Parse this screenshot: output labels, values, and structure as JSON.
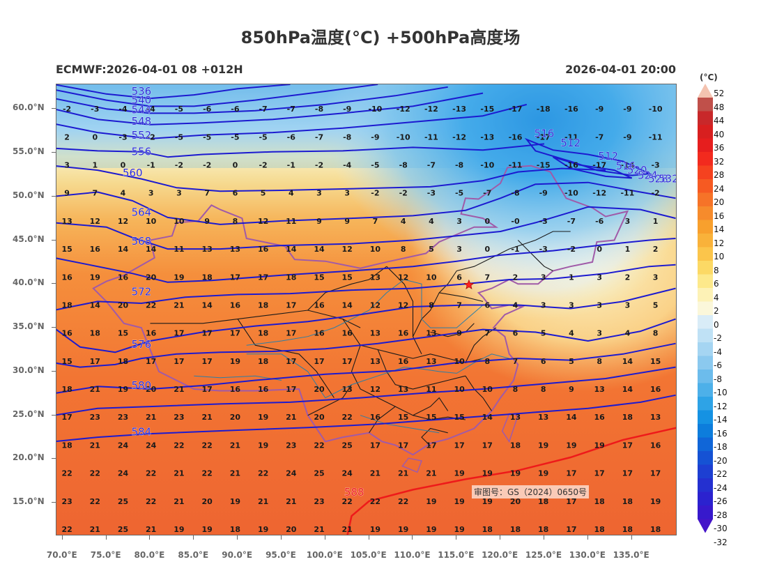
{
  "header": {
    "title": "850hPa温度(°C) +500hPa高度场",
    "model_run": "ECMWF:2026-04-01 08 +012H",
    "valid_time": "2026-04-01 20:00"
  },
  "approval_number": "审图号：GS（2024）0650号",
  "axes": {
    "lat_labels": [
      "60.0°N",
      "55.0°N",
      "50.0°N",
      "45.0°N",
      "40.0°N",
      "35.0°N",
      "30.0°N",
      "25.0°N",
      "20.0°N",
      "15.0°N"
    ],
    "lat_values": [
      60,
      55,
      50,
      45,
      40,
      35,
      30,
      25,
      20,
      15
    ],
    "lon_labels": [
      "70.0°E",
      "75.0°E",
      "80.0°E",
      "85.0°E",
      "90.0°E",
      "95.0°E",
      "100.0°E",
      "105.0°E",
      "110.0°E",
      "115.0°E",
      "120.0°E",
      "125.0°E",
      "130.0°E",
      "135.0°E"
    ],
    "lon_values": [
      70,
      75,
      80,
      85,
      90,
      95,
      100,
      105,
      110,
      115,
      120,
      125,
      130,
      135
    ],
    "lat_range": [
      11.2,
      62.8
    ],
    "lon_range": [
      69.3,
      140.2
    ]
  },
  "colorbar": {
    "unit": "(°C)",
    "labels": [
      "52",
      "48",
      "44",
      "40",
      "36",
      "32",
      "28",
      "24",
      "20",
      "16",
      "14",
      "12",
      "10",
      "8",
      "6",
      "4",
      "2",
      "0",
      "-2",
      "-4",
      "-6",
      "-8",
      "-10",
      "-12",
      "-14",
      "-16",
      "-18",
      "-20",
      "-22",
      "-24",
      "-26",
      "-28",
      "-30",
      "-32"
    ],
    "colors": [
      "#f4c3b0",
      "#c0504a",
      "#c8282a",
      "#d81f1f",
      "#e61e1e",
      "#f22a1e",
      "#f5421f",
      "#f65a22",
      "#f67328",
      "#f68b2c",
      "#f8a02d",
      "#f9b23a",
      "#fbc54b",
      "#fcd965",
      "#fde98b",
      "#fdf2b6",
      "#fbf7da",
      "#d9ecf7",
      "#bfe1f5",
      "#a5d5f2",
      "#8bc9ef",
      "#6cbcec",
      "#4db0e9",
      "#2ea3e6",
      "#1592e3",
      "#0d7ddc",
      "#1066d8",
      "#1552d4",
      "#1d3fd2",
      "#2430d0",
      "#2b22cf",
      "#3719cc",
      "#4414c9"
    ]
  },
  "contours": {
    "height_labels": [
      "536",
      "540",
      "544",
      "548",
      "552",
      "556",
      "560",
      "564",
      "568",
      "572",
      "576",
      "580",
      "584",
      "588",
      "516",
      "512",
      "512",
      "516",
      "520",
      "524",
      "528",
      "532"
    ],
    "height_values": [
      536,
      540,
      544,
      548,
      552,
      556,
      560,
      564,
      568,
      572,
      576,
      580,
      584,
      588,
      516,
      512,
      512,
      516,
      520,
      524,
      528,
      532
    ]
  },
  "temperature_grid": {
    "lons": [
      70.5,
      73.7,
      76.9,
      80.1,
      83.3,
      86.5,
      89.7,
      92.9,
      96.1,
      99.3,
      102.5,
      105.7,
      108.9,
      112.1,
      115.3,
      118.5,
      121.7,
      124.9,
      128.1,
      131.3,
      134.5,
      137.7
    ],
    "lats": [
      60.0,
      56.8,
      53.6,
      50.4,
      47.2,
      44.0,
      40.8,
      37.6,
      34.4,
      31.2,
      28.0,
      24.8,
      21.6,
      18.4,
      15.2,
      12.0
    ],
    "rows": [
      [
        "-2",
        "-3",
        "-4",
        "-4",
        "-5",
        "-6",
        "-6",
        "-7",
        "-7",
        "-8",
        "-9",
        "-10",
        "-12",
        "-12",
        "-13",
        "-15",
        "-17",
        "-18",
        "-16",
        "-9",
        "-9",
        "-10"
      ],
      [
        "2",
        "0",
        "-3",
        "-2",
        "-5",
        "-5",
        "-5",
        "-5",
        "-6",
        "-7",
        "-8",
        "-9",
        "-10",
        "-11",
        "-12",
        "-13",
        "-16",
        "-17",
        "-11",
        "-7",
        "-9",
        "-11"
      ],
      [
        "3",
        "1",
        "0",
        "-1",
        "-2",
        "-2",
        "0",
        "-2",
        "-1",
        "-2",
        "-4",
        "-5",
        "-8",
        "-7",
        "-8",
        "-10",
        "-11",
        "-15",
        "-16",
        "-17",
        "-14",
        "-3"
      ],
      [
        "9",
        "7",
        "4",
        "3",
        "3",
        "7",
        "6",
        "5",
        "4",
        "3",
        "3",
        "-2",
        "-2",
        "-3",
        "-5",
        "-7",
        "-8",
        "-9",
        "-10",
        "-12",
        "-11",
        "-2"
      ],
      [
        "13",
        "12",
        "12",
        "10",
        "10",
        "9",
        "8",
        "12",
        "11",
        "9",
        "9",
        "7",
        "4",
        "4",
        "3",
        "0",
        "-0",
        "-3",
        "-7",
        "-6",
        "3",
        "1"
      ],
      [
        "15",
        "16",
        "14",
        "14",
        "11",
        "13",
        "13",
        "16",
        "14",
        "14",
        "12",
        "10",
        "8",
        "5",
        "3",
        "0",
        "-1",
        "-3",
        "-2",
        "0",
        "1",
        "2"
      ],
      [
        "16",
        "19",
        "16",
        "20",
        "19",
        "18",
        "17",
        "17",
        "18",
        "15",
        "15",
        "13",
        "12",
        "10",
        "6",
        "7",
        "2",
        "3",
        "1",
        "3",
        "2",
        "3"
      ],
      [
        "18",
        "14",
        "20",
        "22",
        "21",
        "14",
        "16",
        "18",
        "17",
        "16",
        "14",
        "12",
        "12",
        "8",
        "7",
        "6",
        "4",
        "3",
        "3",
        "3",
        "3",
        "5"
      ],
      [
        "16",
        "18",
        "15",
        "16",
        "17",
        "17",
        "17",
        "18",
        "17",
        "16",
        "16",
        "13",
        "16",
        "13",
        "9",
        "7",
        "6",
        "5",
        "4",
        "3",
        "4",
        "8"
      ],
      [
        "15",
        "17",
        "18",
        "17",
        "17",
        "17",
        "19",
        "18",
        "17",
        "17",
        "17",
        "13",
        "16",
        "13",
        "10",
        "8",
        "7",
        "6",
        "5",
        "8",
        "14",
        "15"
      ],
      [
        "18",
        "21",
        "19",
        "20",
        "21",
        "17",
        "16",
        "16",
        "17",
        "20",
        "13",
        "12",
        "13",
        "11",
        "10",
        "10",
        "8",
        "8",
        "9",
        "13",
        "14",
        "16"
      ],
      [
        "17",
        "23",
        "23",
        "21",
        "23",
        "21",
        "20",
        "19",
        "21",
        "20",
        "22",
        "16",
        "15",
        "15",
        "15",
        "14",
        "13",
        "13",
        "14",
        "16",
        "18",
        "13"
      ],
      [
        "18",
        "21",
        "24",
        "24",
        "22",
        "22",
        "21",
        "19",
        "23",
        "22",
        "25",
        "17",
        "17",
        "17",
        "17",
        "17",
        "18",
        "19",
        "19",
        "19",
        "17",
        "16"
      ],
      [
        "22",
        "22",
        "24",
        "22",
        "21",
        "22",
        "21",
        "22",
        "24",
        "25",
        "24",
        "21",
        "21",
        "21",
        "19",
        "19",
        "19",
        "19",
        "17",
        "17",
        "17",
        "17"
      ],
      [
        "23",
        "22",
        "25",
        "22",
        "21",
        "20",
        "19",
        "21",
        "21",
        "23",
        "22",
        "22",
        "22",
        "19",
        "19",
        "19",
        "20",
        "18",
        "17",
        "18",
        "18",
        "19"
      ],
      [
        "22",
        "21",
        "25",
        "21",
        "19",
        "19",
        "18",
        "19",
        "20",
        "21",
        "21",
        "19",
        "19",
        "19",
        "19",
        "18",
        "18",
        "18",
        "17",
        "18",
        "18",
        "18"
      ]
    ]
  },
  "colors": {
    "height_contour": "#1c1ad0",
    "contour_588": "#ee1a1a",
    "province_border": "#1a1a1a",
    "country_border": "#a05aa8",
    "river": "#2a7fa8",
    "beijing_star": "#ff2020"
  }
}
